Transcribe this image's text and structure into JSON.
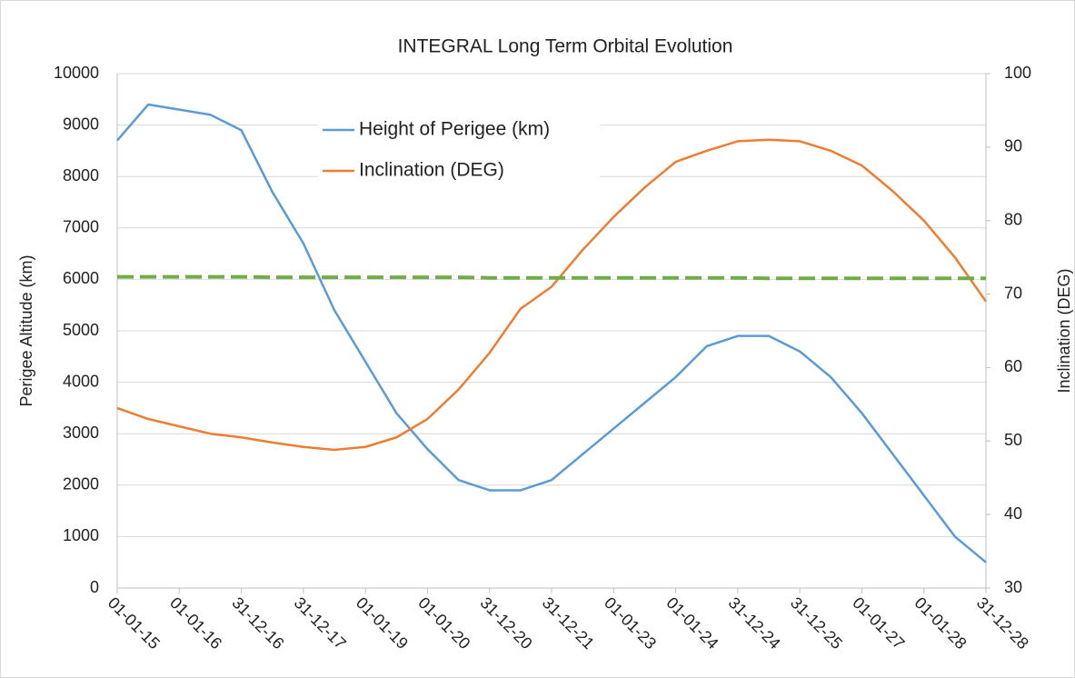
{
  "chart_data": {
    "type": "line",
    "title": "INTEGRAL Long Term Orbital Evolution",
    "y_label": "Perigee Altitude (km)",
    "y2_label": "Inclination (DEG)",
    "categories": [
      "01-01-15",
      null,
      "01-01-16",
      null,
      "31-12-16",
      null,
      "31-12-17",
      null,
      "01-01-19",
      null,
      "01-01-20",
      null,
      "31-12-20",
      null,
      "31-12-21",
      null,
      "01-01-23",
      null,
      "01-01-24",
      null,
      "31-12-24",
      null,
      "31-12-25",
      null,
      "01-01-27",
      null,
      "01-01-28",
      null,
      "31-12-28"
    ],
    "series": [
      {
        "name": "Height of Perigee (km)",
        "color": "#5b9bd5",
        "axis": "y",
        "values": [
          8700,
          9400,
          9300,
          9200,
          8900,
          7700,
          6700,
          5400,
          4400,
          3400,
          2700,
          2100,
          1900,
          1900,
          2100,
          2600,
          3100,
          3600,
          4100,
          4700,
          4900,
          4900,
          4600,
          4100,
          3400,
          2600,
          1800,
          1000,
          500
        ]
      },
      {
        "name": "Inclination (DEG)",
        "color": "#ed7d31",
        "axis": "y2",
        "values": [
          54.5,
          53,
          52,
          51,
          50.5,
          49.8,
          49.2,
          48.8,
          49.2,
          50.5,
          53,
          57,
          62,
          68,
          71,
          76,
          80.5,
          84.5,
          88,
          89.5,
          90.8,
          91,
          90.8,
          89.5,
          87.5,
          84,
          80,
          75,
          69
        ]
      },
      {
        "color": "#70ad47",
        "axis": "y",
        "dashed": true,
        "values": [
          6050,
          6050,
          6050,
          6050,
          6050,
          6040,
          6040,
          6040,
          6040,
          6040,
          6040,
          6040,
          6030,
          6030,
          6030,
          6030,
          6030,
          6030,
          6030,
          6030,
          6030,
          6020,
          6020,
          6020,
          6020,
          6020,
          6020,
          6020,
          6020
        ]
      }
    ],
    "ylim": [
      0,
      10000
    ],
    "yticks": [
      0,
      1000,
      2000,
      3000,
      4000,
      5000,
      6000,
      7000,
      8000,
      9000,
      10000
    ],
    "y2lim": [
      30,
      100
    ],
    "y2ticks": [
      30,
      40,
      50,
      60,
      70,
      80,
      90,
      100
    ],
    "grid": true,
    "legend": "top"
  }
}
